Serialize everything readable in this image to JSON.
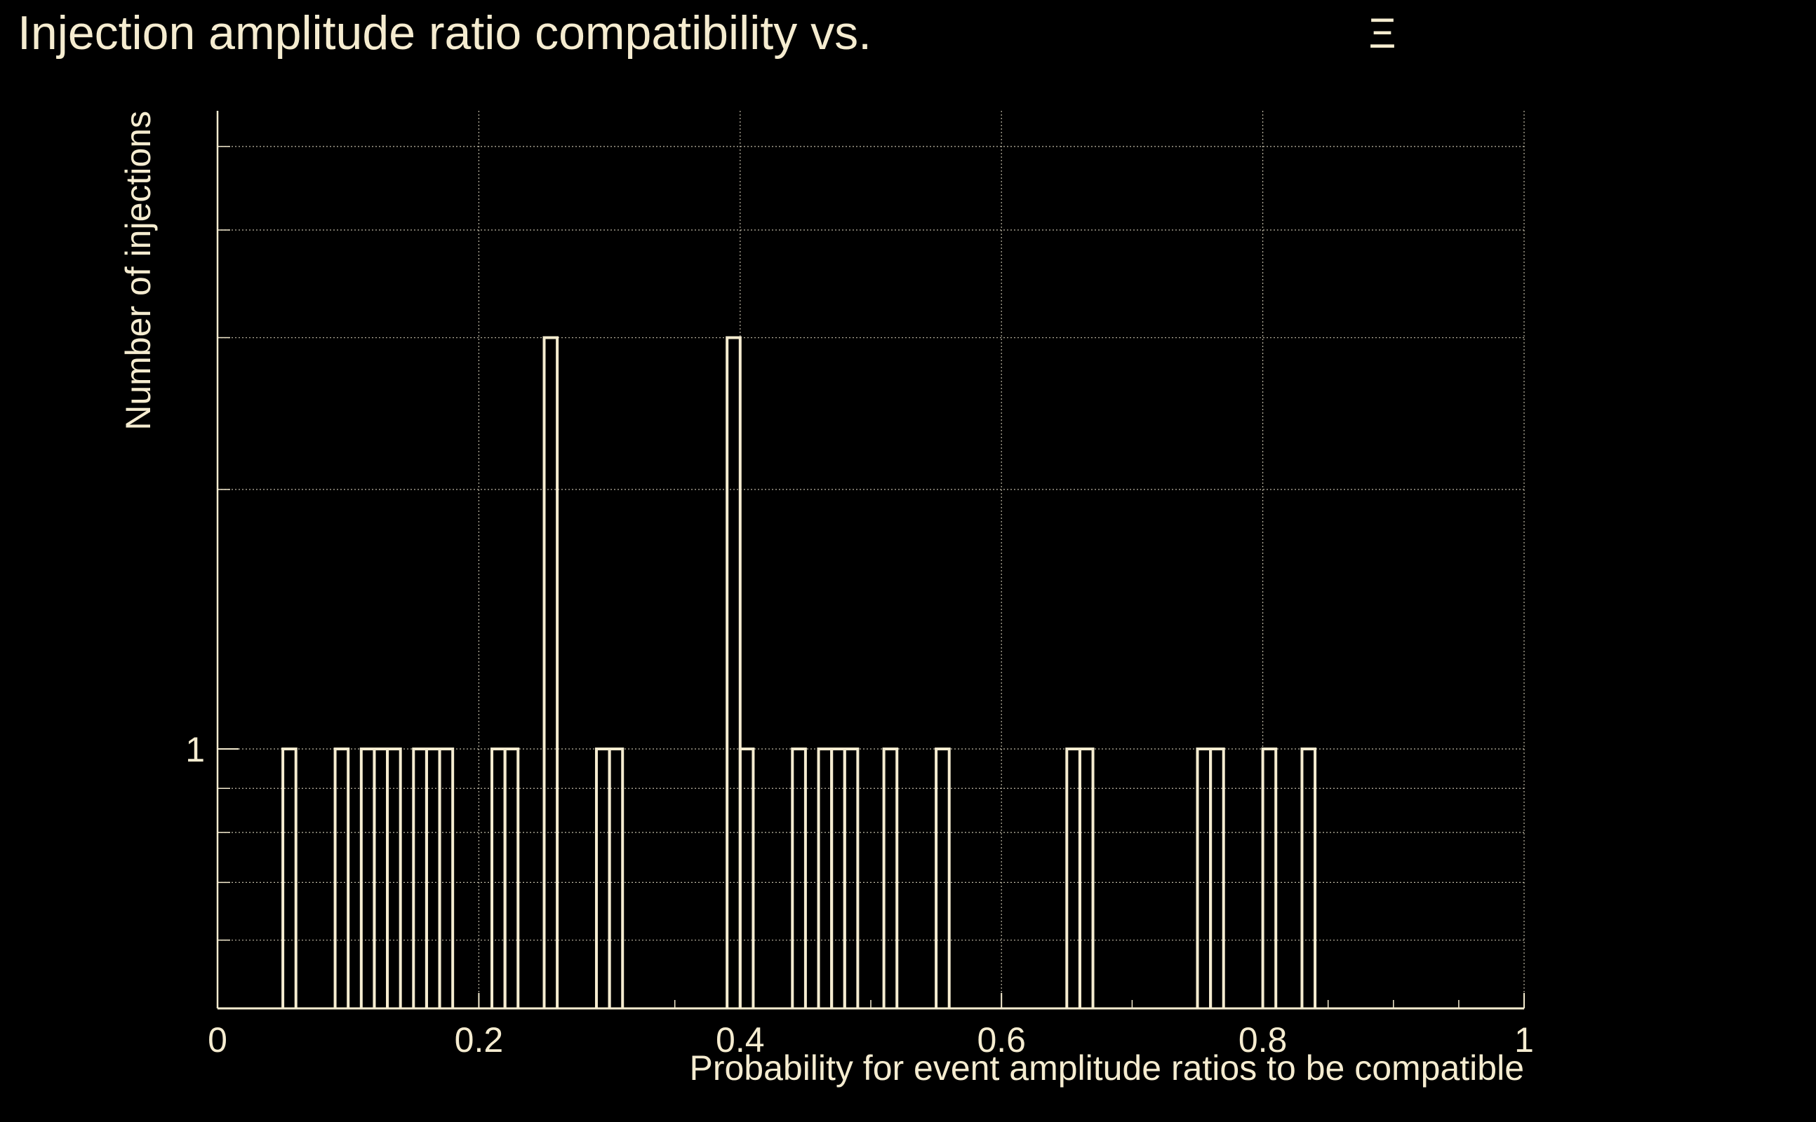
{
  "colors": {
    "background": "#000000",
    "foreground": "#f5ecd0",
    "grid": "#bdb7a4"
  },
  "chart_data": {
    "type": "bar",
    "style": "step-histogram",
    "title": "Injection amplitude ratio compatibility vs.",
    "title_symbol": "Ξ",
    "xlabel": "Probability for event amplitude ratios to be compatible",
    "ylabel": "Number of injections",
    "xlim": [
      0,
      1
    ],
    "y_scale": "log",
    "ylim": [
      0.5,
      5.5
    ],
    "grid": true,
    "x_ticks": [
      {
        "value": 0,
        "label": "0"
      },
      {
        "value": 0.2,
        "label": "0.2"
      },
      {
        "value": 0.4,
        "label": "0.4"
      },
      {
        "value": 0.6,
        "label": "0.6"
      },
      {
        "value": 0.8,
        "label": "0.8"
      },
      {
        "value": 1,
        "label": "1"
      }
    ],
    "y_major_ticks": [
      {
        "value": 1,
        "label": "1"
      }
    ],
    "y_minor_ticks": [
      0.6,
      0.7,
      0.8,
      0.9,
      2,
      3,
      4,
      5
    ],
    "bin_width": 0.01,
    "bins": [
      {
        "x": 0.05,
        "count": 1
      },
      {
        "x": 0.09,
        "count": 1
      },
      {
        "x": 0.11,
        "count": 1
      },
      {
        "x": 0.12,
        "count": 1
      },
      {
        "x": 0.13,
        "count": 1
      },
      {
        "x": 0.15,
        "count": 1
      },
      {
        "x": 0.16,
        "count": 1
      },
      {
        "x": 0.17,
        "count": 1
      },
      {
        "x": 0.21,
        "count": 1
      },
      {
        "x": 0.22,
        "count": 1
      },
      {
        "x": 0.25,
        "count": 3
      },
      {
        "x": 0.29,
        "count": 1
      },
      {
        "x": 0.3,
        "count": 1
      },
      {
        "x": 0.39,
        "count": 3
      },
      {
        "x": 0.4,
        "count": 1
      },
      {
        "x": 0.44,
        "count": 1
      },
      {
        "x": 0.46,
        "count": 1
      },
      {
        "x": 0.47,
        "count": 1
      },
      {
        "x": 0.48,
        "count": 1
      },
      {
        "x": 0.51,
        "count": 1
      },
      {
        "x": 0.55,
        "count": 1
      },
      {
        "x": 0.65,
        "count": 1
      },
      {
        "x": 0.66,
        "count": 1
      },
      {
        "x": 0.75,
        "count": 1
      },
      {
        "x": 0.76,
        "count": 1
      },
      {
        "x": 0.8,
        "count": 1
      },
      {
        "x": 0.83,
        "count": 1
      }
    ]
  }
}
